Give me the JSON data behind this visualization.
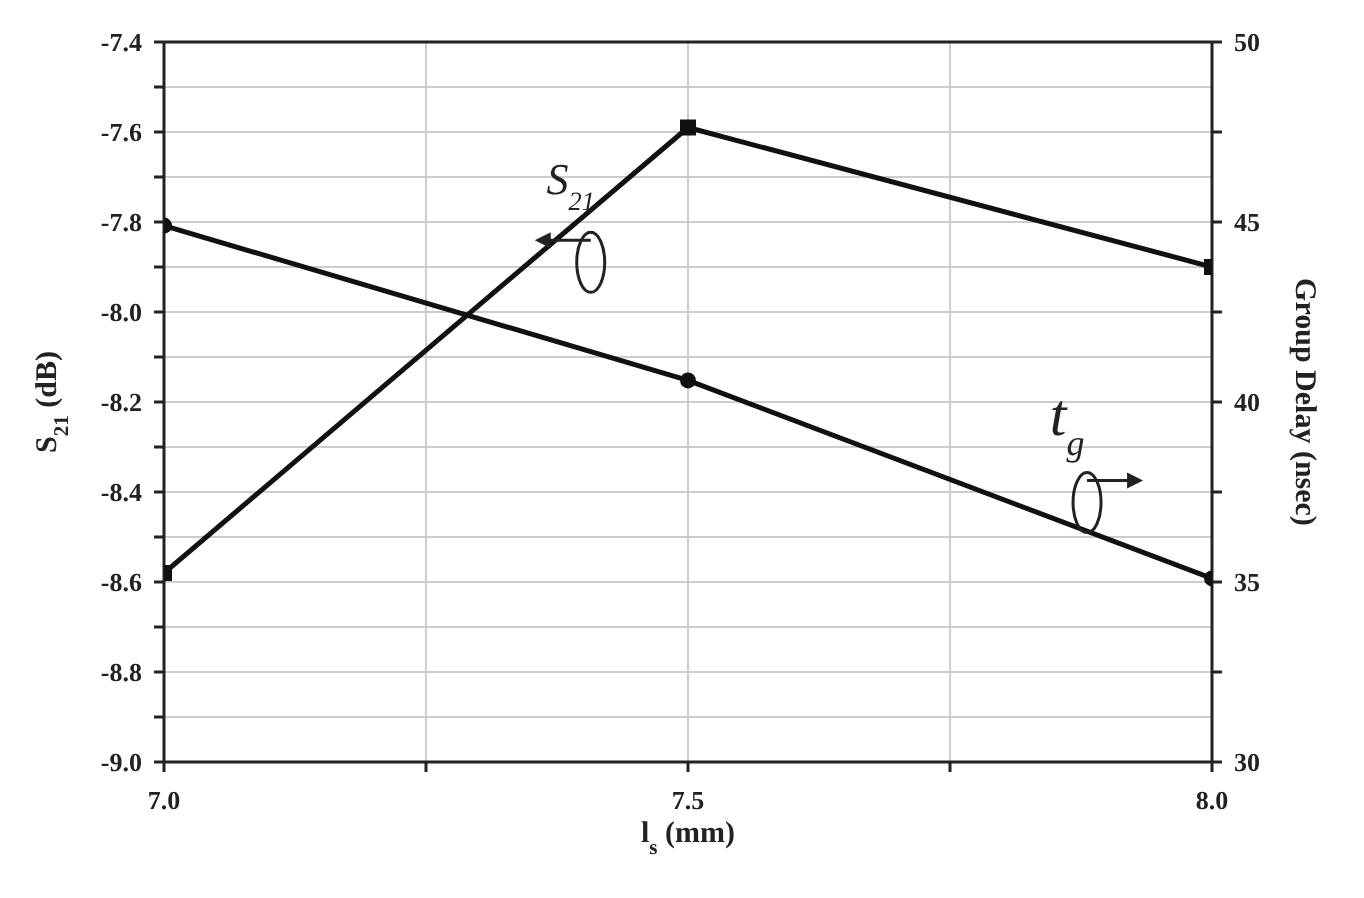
{
  "chart_data": {
    "type": "line",
    "xlabel": "l$_{s}$ (mm)",
    "ylabel": "S$_{21}$ (dB)",
    "y2label": "Group Delay (nsec)",
    "x": [
      7.0,
      7.5,
      8.0
    ],
    "series": [
      {
        "color": "#111111",
        "marker": "square",
        "values": [
          -8.58,
          -7.59,
          -7.9
        ]
      },
      {
        "color": "#111111",
        "marker": "circle",
        "axis": "y2",
        "values": [
          44.9,
          40.6,
          35.1
        ]
      }
    ],
    "xlim": [
      7.0,
      8.0
    ],
    "xticks": [
      {
        "value": 7.0,
        "label": "7.0"
      },
      {
        "value": 7.25,
        "label": null
      },
      {
        "value": 7.5,
        "label": "7.5"
      },
      {
        "value": 7.75,
        "label": null
      },
      {
        "value": 8.0,
        "label": "8.0"
      }
    ],
    "ylim": [
      -9.0,
      -7.4
    ],
    "yticks": [
      {
        "value": -9.0,
        "label": "-9.0"
      },
      {
        "value": -8.9,
        "label": null
      },
      {
        "value": -8.8,
        "label": "-8.8"
      },
      {
        "value": -8.7,
        "label": null
      },
      {
        "value": -8.6,
        "label": "-8.6"
      },
      {
        "value": -8.5,
        "label": null
      },
      {
        "value": -8.4,
        "label": "-8.4"
      },
      {
        "value": -8.3,
        "label": null
      },
      {
        "value": -8.2,
        "label": "-8.2"
      },
      {
        "value": -8.1,
        "label": null
      },
      {
        "value": -8.0,
        "label": "-8.0"
      },
      {
        "value": -7.9,
        "label": null
      },
      {
        "value": -7.8,
        "label": "-7.8"
      },
      {
        "value": -7.7,
        "label": null
      },
      {
        "value": -7.6,
        "label": "-7.6"
      },
      {
        "value": -7.5,
        "label": null
      },
      {
        "value": -7.4,
        "label": "-7.4"
      }
    ],
    "y2lim": [
      30,
      50
    ],
    "y2ticks": [
      30,
      {
        "value": 32.5,
        "label": null
      },
      35,
      {
        "value": 37.5,
        "label": null
      },
      40,
      {
        "value": 42.5,
        "label": null
      },
      45,
      {
        "value": 47.5,
        "label": null
      },
      50
    ],
    "grid": true,
    "line_style": "solid",
    "annotations": [
      "S$_{21}$",
      "t$_{g}$"
    ]
  }
}
